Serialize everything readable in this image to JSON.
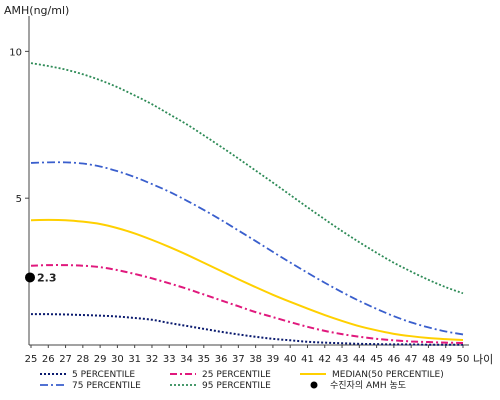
{
  "chart_data": {
    "type": "line",
    "ylabel": "AMH(ng/ml)",
    "xlabel": "나이",
    "x": [
      25,
      26,
      27,
      28,
      29,
      30,
      31,
      32,
      33,
      34,
      35,
      36,
      37,
      38,
      39,
      40,
      41,
      42,
      43,
      44,
      45,
      46,
      47,
      48,
      49,
      50
    ],
    "x_tick_labels": [
      "25",
      "26",
      "27",
      "28",
      "29",
      "30",
      "31",
      "32",
      "33",
      "34",
      "35",
      "36",
      "37",
      "38",
      "39",
      "40",
      "41",
      "42",
      "43",
      "44",
      "45",
      "46",
      "47",
      "48",
      "49",
      "50"
    ],
    "y_ticks": [
      5,
      10
    ],
    "y_tick_labels": [
      "5",
      "10"
    ],
    "ylim": [
      0,
      11
    ],
    "grid": false,
    "legend_position": "bottom",
    "series": [
      {
        "name": "5 PERCENTILE",
        "color": "#0a1a6e",
        "dash": "2,2",
        "width": 2,
        "values": [
          1.05,
          1.05,
          1.04,
          1.02,
          1.0,
          0.97,
          0.92,
          0.86,
          0.75,
          0.65,
          0.55,
          0.45,
          0.36,
          0.28,
          0.21,
          0.16,
          0.11,
          0.08,
          0.06,
          0.04,
          0.03,
          0.02,
          0.02,
          0.01,
          0.01,
          0.01
        ]
      },
      {
        "name": "25 PERCENTILE",
        "color": "#e0197d",
        "dash": "7,3,2,3",
        "width": 2,
        "values": [
          2.7,
          2.72,
          2.72,
          2.7,
          2.65,
          2.55,
          2.42,
          2.27,
          2.1,
          1.92,
          1.72,
          1.52,
          1.32,
          1.12,
          0.95,
          0.78,
          0.62,
          0.48,
          0.37,
          0.28,
          0.21,
          0.16,
          0.12,
          0.1,
          0.08,
          0.07
        ]
      },
      {
        "name": "MEDIAN(50 PERCENTILE)",
        "color": "#ffd000",
        "dash": "",
        "width": 2,
        "values": [
          4.25,
          4.26,
          4.25,
          4.2,
          4.12,
          3.98,
          3.8,
          3.58,
          3.34,
          3.08,
          2.8,
          2.52,
          2.24,
          1.97,
          1.71,
          1.47,
          1.24,
          1.02,
          0.82,
          0.64,
          0.5,
          0.38,
          0.3,
          0.24,
          0.2,
          0.17
        ]
      },
      {
        "name": "75 PERCENTILE",
        "color": "#3a5fcd",
        "dash": "8,3,2,3",
        "width": 1.8,
        "values": [
          6.2,
          6.22,
          6.22,
          6.18,
          6.08,
          5.92,
          5.72,
          5.48,
          5.22,
          4.92,
          4.6,
          4.26,
          3.9,
          3.54,
          3.17,
          2.81,
          2.46,
          2.12,
          1.8,
          1.5,
          1.23,
          0.98,
          0.77,
          0.6,
          0.46,
          0.36
        ]
      },
      {
        "name": "95 PERCENTILE",
        "color": "#2e8b57",
        "dash": "2,2",
        "width": 1.8,
        "values": [
          9.6,
          9.5,
          9.38,
          9.22,
          9.02,
          8.78,
          8.5,
          8.2,
          7.86,
          7.52,
          7.14,
          6.75,
          6.35,
          5.94,
          5.53,
          5.11,
          4.69,
          4.28,
          3.88,
          3.5,
          3.14,
          2.8,
          2.5,
          2.22,
          1.97,
          1.76
        ]
      }
    ],
    "highlight_point": {
      "name": "수진자의 AMH 농도",
      "x": 25,
      "y": 2.3,
      "label": "2.3",
      "color": "#000000"
    }
  }
}
